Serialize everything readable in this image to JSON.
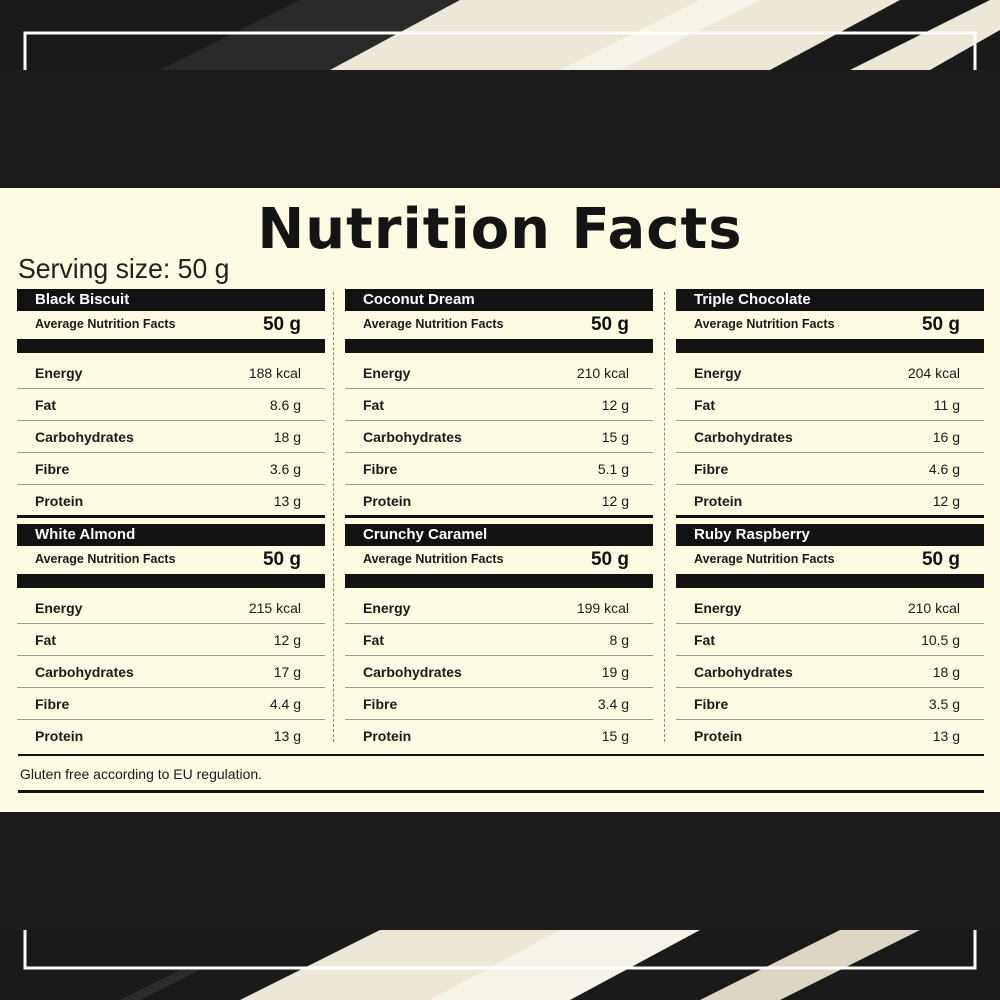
{
  "header": {
    "title": "Nutrition Facts",
    "serving_size": "Serving size: 50 g"
  },
  "products": [
    {
      "name": "Black Biscuit",
      "avg_label": "Average Nutrition Facts",
      "avg_value": "50 g",
      "rows": [
        {
          "label": "Energy",
          "value": "188 kcal"
        },
        {
          "label": "Fat",
          "value": "8.6 g"
        },
        {
          "label": "Carbohydrates",
          "value": "18 g"
        },
        {
          "label": "Fibre",
          "value": "3.6 g"
        },
        {
          "label": "Protein",
          "value": "13 g"
        }
      ]
    },
    {
      "name": "Coconut Dream",
      "avg_label": "Average Nutrition Facts",
      "avg_value": "50 g",
      "rows": [
        {
          "label": "Energy",
          "value": "210 kcal"
        },
        {
          "label": "Fat",
          "value": "12 g"
        },
        {
          "label": "Carbohydrates",
          "value": "15 g"
        },
        {
          "label": "Fibre",
          "value": "5.1 g"
        },
        {
          "label": "Protein",
          "value": "12 g"
        }
      ]
    },
    {
      "name": "Triple Chocolate",
      "avg_label": "Average Nutrition Facts",
      "avg_value": "50 g",
      "rows": [
        {
          "label": "Energy",
          "value": "204 kcal"
        },
        {
          "label": "Fat",
          "value": "11 g"
        },
        {
          "label": "Carbohydrates",
          "value": "16 g"
        },
        {
          "label": "Fibre",
          "value": "4.6 g"
        },
        {
          "label": "Protein",
          "value": "12 g"
        }
      ]
    },
    {
      "name": "White Almond",
      "avg_label": "Average Nutrition Facts",
      "avg_value": "50 g",
      "rows": [
        {
          "label": "Energy",
          "value": "215 kcal"
        },
        {
          "label": "Fat",
          "value": "12 g"
        },
        {
          "label": "Carbohydrates",
          "value": "17 g"
        },
        {
          "label": "Fibre",
          "value": "4.4 g"
        },
        {
          "label": "Protein",
          "value": "13 g"
        }
      ]
    },
    {
      "name": "Crunchy Caramel",
      "avg_label": "Average Nutrition Facts",
      "avg_value": "50 g",
      "rows": [
        {
          "label": "Energy",
          "value": "199 kcal"
        },
        {
          "label": "Fat",
          "value": "8 g"
        },
        {
          "label": "Carbohydrates",
          "value": "19 g"
        },
        {
          "label": "Fibre",
          "value": "3.4 g"
        },
        {
          "label": "Protein",
          "value": "15 g"
        }
      ]
    },
    {
      "name": "Ruby Raspberry",
      "avg_label": "Average Nutrition Facts",
      "avg_value": "50 g",
      "rows": [
        {
          "label": "Energy",
          "value": "210 kcal"
        },
        {
          "label": "Fat",
          "value": "10.5 g"
        },
        {
          "label": "Carbohydrates",
          "value": "18 g"
        },
        {
          "label": "Fibre",
          "value": "3.5 g"
        },
        {
          "label": "Protein",
          "value": "13 g"
        }
      ]
    }
  ],
  "footer": {
    "note": "Gluten free according to EU regulation."
  },
  "colors": {
    "panel": "#fdfbe1",
    "dark": "#121212",
    "background": "#1c1c1c",
    "cream_stripe": "#ece7d6"
  }
}
